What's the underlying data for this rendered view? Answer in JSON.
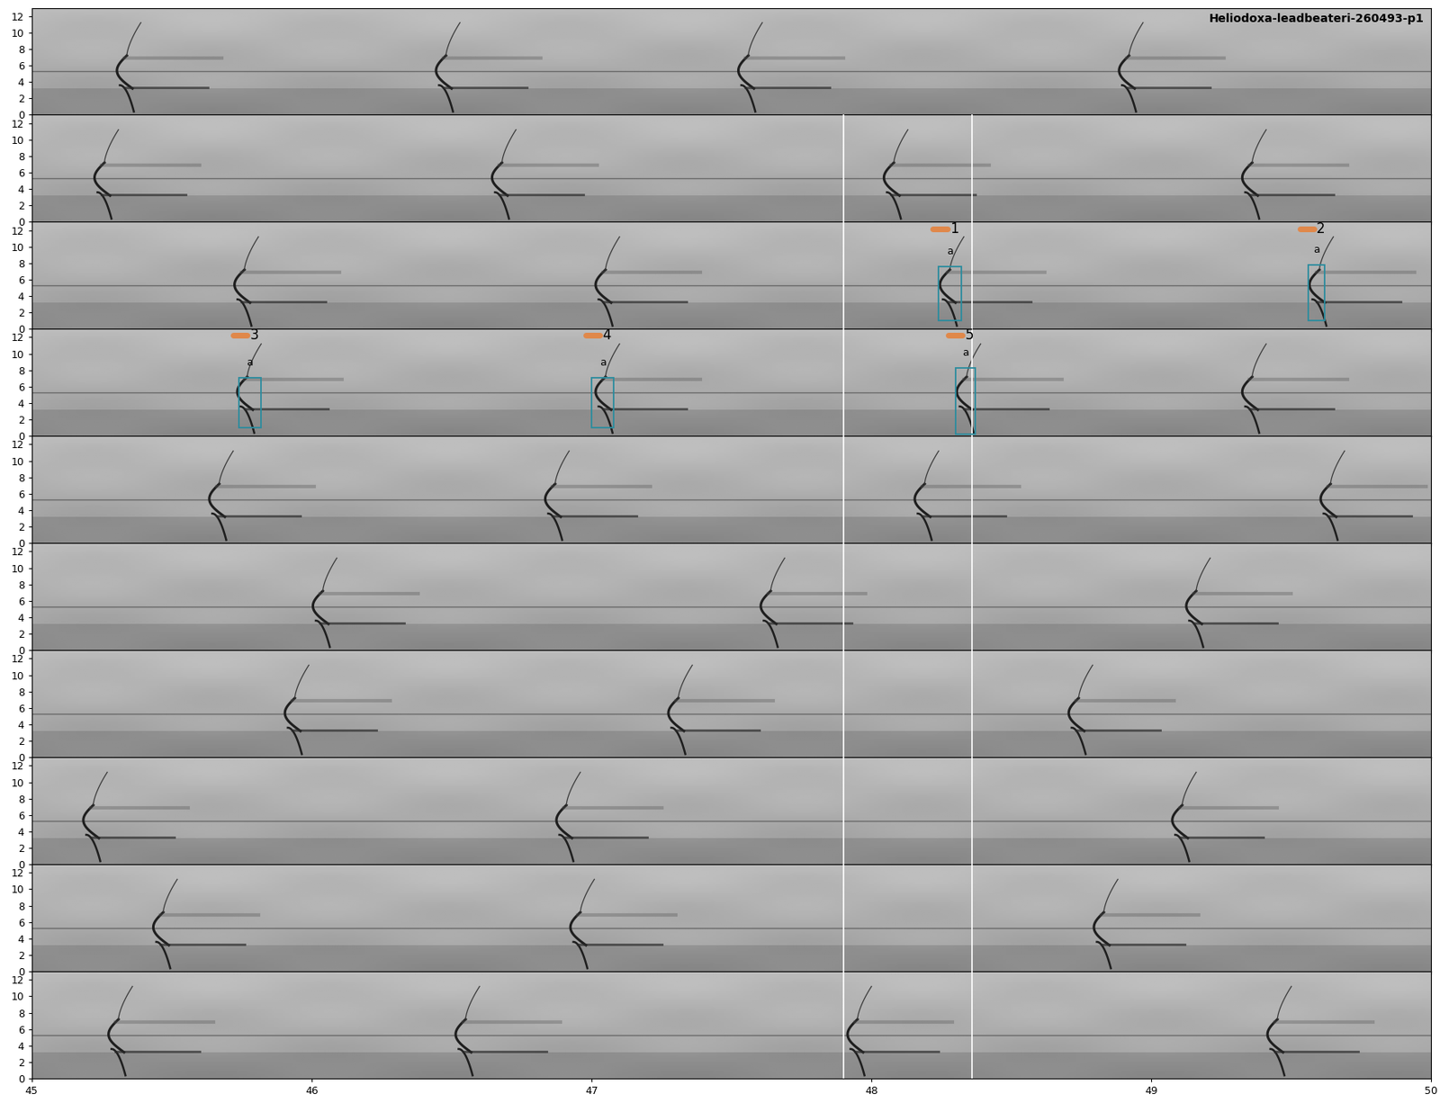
{
  "chart_data": {
    "type": "spectrogram",
    "title": "Heliodoxa-leadbeateri-260493-p1",
    "xlim": [
      45,
      50
    ],
    "xticks": [
      45,
      46,
      47,
      48,
      49,
      50
    ],
    "ylim": [
      0,
      13
    ],
    "yticks": [
      0,
      2,
      4,
      6,
      8,
      10,
      12
    ],
    "rows": [
      {
        "calls": [
          45.33,
          46.47,
          47.55,
          48.91
        ]
      },
      {
        "calls": [
          45.25,
          46.67,
          48.07,
          49.35
        ]
      },
      {
        "calls": [
          45.75,
          47.04,
          48.27,
          49.59
        ]
      },
      {
        "calls": [
          45.76,
          47.04,
          48.33,
          49.35
        ]
      },
      {
        "calls": [
          45.66,
          46.86,
          48.18,
          49.63
        ]
      },
      {
        "calls": [
          46.03,
          47.63,
          49.15
        ]
      },
      {
        "calls": [
          45.93,
          47.3,
          48.73
        ]
      },
      {
        "calls": [
          45.21,
          46.9,
          49.1
        ]
      },
      {
        "calls": [
          45.46,
          46.95,
          48.82
        ]
      },
      {
        "calls": [
          45.3,
          46.54,
          47.94,
          49.44
        ]
      }
    ],
    "selection": {
      "x": [
        47.9,
        48.36
      ],
      "rows": [
        2,
        3,
        4,
        5,
        6,
        7,
        8,
        9,
        10
      ]
    },
    "annotations": [
      {
        "number": 1,
        "label": "a",
        "row": 3,
        "x": [
          48.24,
          48.32
        ],
        "y": [
          1.0,
          7.6
        ]
      },
      {
        "number": 2,
        "label": "a",
        "row": 3,
        "x": [
          49.56,
          49.62
        ],
        "y": [
          1.0,
          7.8
        ]
      },
      {
        "number": 3,
        "label": "a",
        "row": 4,
        "x": [
          45.74,
          45.82
        ],
        "y": [
          1.0,
          7.1
        ]
      },
      {
        "number": 4,
        "label": "a",
        "row": 4,
        "x": [
          47.0,
          47.08
        ],
        "y": [
          1.0,
          7.1
        ]
      },
      {
        "number": 5,
        "label": "a",
        "row": 4,
        "x": [
          48.3,
          48.37
        ],
        "y": [
          0.2,
          8.3
        ]
      }
    ]
  }
}
